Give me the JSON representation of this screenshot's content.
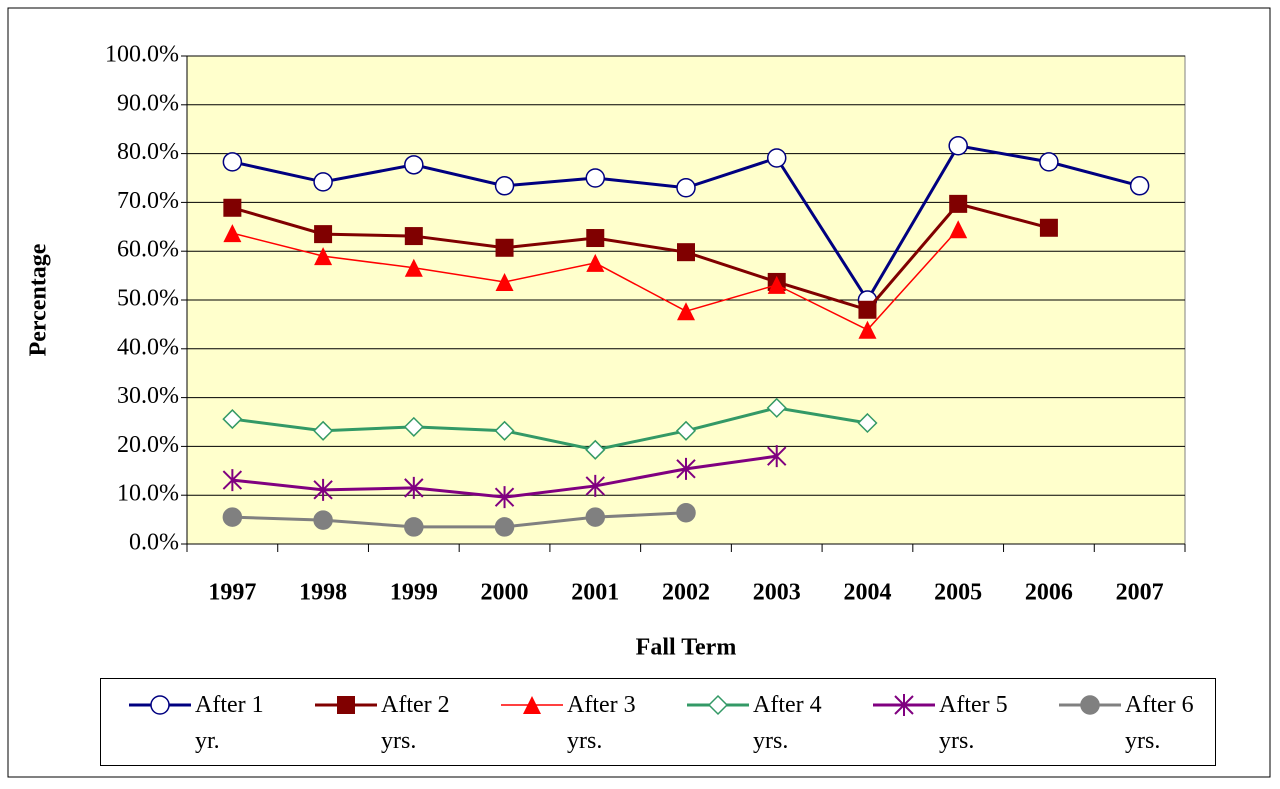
{
  "chart_data": {
    "type": "line",
    "x_label": "Fall Term",
    "y_label": "Percentage",
    "categories": [
      "1997",
      "1998",
      "1999",
      "2000",
      "2001",
      "2002",
      "2003",
      "2004",
      "2005",
      "2006",
      "2007"
    ],
    "series": [
      {
        "name": "After 1 yr.",
        "color": "#000080",
        "marker": "circle-open",
        "line_width": 3,
        "values": [
          78.3,
          74.2,
          77.7,
          73.4,
          75.0,
          73.0,
          79.1,
          50.0,
          81.6,
          78.3,
          73.4
        ]
      },
      {
        "name": "After 2 yrs.",
        "color": "#800000",
        "marker": "square",
        "line_width": 3,
        "values": [
          68.9,
          63.5,
          63.1,
          60.7,
          62.7,
          59.8,
          53.7,
          48.0,
          69.7,
          64.8,
          null
        ]
      },
      {
        "name": "After 3 yrs.",
        "color": "#ff0000",
        "marker": "triangle",
        "line_width": 1.5,
        "values": [
          63.7,
          59.0,
          56.6,
          53.7,
          57.6,
          47.7,
          53.1,
          43.9,
          64.5,
          null,
          null
        ]
      },
      {
        "name": "After 4 yrs.",
        "color": "#339966",
        "marker": "diamond-open",
        "line_width": 3,
        "values": [
          25.6,
          23.2,
          24.0,
          23.2,
          19.3,
          23.2,
          27.9,
          24.8,
          null,
          null,
          null
        ]
      },
      {
        "name": "After 5 yrs.",
        "color": "#800080",
        "marker": "asterisk",
        "line_width": 3,
        "values": [
          13.1,
          11.1,
          11.5,
          9.6,
          11.9,
          15.4,
          18.0,
          null,
          null,
          null,
          null
        ]
      },
      {
        "name": "After 6 yrs.",
        "color": "#808080",
        "marker": "circle",
        "line_width": 3,
        "values": [
          5.5,
          4.9,
          3.5,
          3.5,
          5.5,
          6.4,
          null,
          null,
          null,
          null,
          null
        ]
      }
    ],
    "ylim": [
      0,
      100
    ],
    "yticks": [
      {
        "value": 0,
        "label": "0.0%"
      },
      {
        "value": 10,
        "label": "10.0%"
      },
      {
        "value": 20,
        "label": "20.0%"
      },
      {
        "value": 30,
        "label": "30.0%"
      },
      {
        "value": 40,
        "label": "40.0%"
      },
      {
        "value": 50,
        "label": "50.0%"
      },
      {
        "value": 60,
        "label": "60.0%"
      },
      {
        "value": 70,
        "label": "70.0%"
      },
      {
        "value": 80,
        "label": "80.0%"
      },
      {
        "value": 90,
        "label": "90.0%"
      },
      {
        "value": 100,
        "label": "100.0%"
      }
    ],
    "grid": true,
    "plot_background": "#ffffcc",
    "legend": "bottom"
  }
}
